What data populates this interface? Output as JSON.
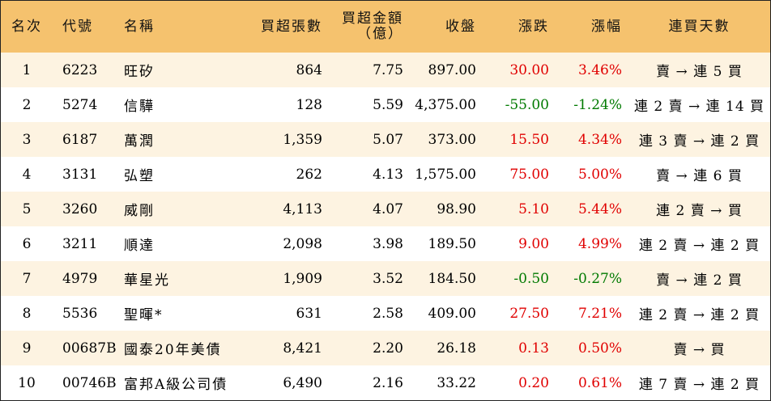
{
  "headers": {
    "rank": "名次",
    "code": "代號",
    "name": "名稱",
    "net_lots": "買超張數",
    "net_amount_line1": "買超金額",
    "net_amount_line2": "（億）",
    "close": "收盤",
    "change": "漲跌",
    "change_pct": "漲幅",
    "streak": "連買天數"
  },
  "colors": {
    "header_bg": "#f5c26e",
    "stripe_bg": "#fdf3e1",
    "up": "#e00000",
    "down": "#007a00"
  },
  "rows": [
    {
      "rank": "1",
      "code": "6223",
      "name": "旺矽",
      "net_lots": "864",
      "net_amount": "7.75",
      "close": "897.00",
      "change": "30.00",
      "change_pct": "3.46%",
      "direction": "up",
      "streak": "賣 → 連 5 買"
    },
    {
      "rank": "2",
      "code": "5274",
      "name": "信驊",
      "net_lots": "128",
      "net_amount": "5.59",
      "close": "4,375.00",
      "change": "-55.00",
      "change_pct": "-1.24%",
      "direction": "down",
      "streak": "連 2 賣 → 連 14 買"
    },
    {
      "rank": "3",
      "code": "6187",
      "name": "萬潤",
      "net_lots": "1,359",
      "net_amount": "5.07",
      "close": "373.00",
      "change": "15.50",
      "change_pct": "4.34%",
      "direction": "up",
      "streak": "連 3 賣 → 連 2 買"
    },
    {
      "rank": "4",
      "code": "3131",
      "name": "弘塑",
      "net_lots": "262",
      "net_amount": "4.13",
      "close": "1,575.00",
      "change": "75.00",
      "change_pct": "5.00%",
      "direction": "up",
      "streak": "賣 → 連 6 買"
    },
    {
      "rank": "5",
      "code": "3260",
      "name": "威剛",
      "net_lots": "4,113",
      "net_amount": "4.07",
      "close": "98.90",
      "change": "5.10",
      "change_pct": "5.44%",
      "direction": "up",
      "streak": "連 2 賣 → 買"
    },
    {
      "rank": "6",
      "code": "3211",
      "name": "順達",
      "net_lots": "2,098",
      "net_amount": "3.98",
      "close": "189.50",
      "change": "9.00",
      "change_pct": "4.99%",
      "direction": "up",
      "streak": "連 2 賣 → 連 2 買"
    },
    {
      "rank": "7",
      "code": "4979",
      "name": "華星光",
      "net_lots": "1,909",
      "net_amount": "3.52",
      "close": "184.50",
      "change": "-0.50",
      "change_pct": "-0.27%",
      "direction": "down",
      "streak": "賣 → 連 2 買"
    },
    {
      "rank": "8",
      "code": "5536",
      "name": "聖暉*",
      "net_lots": "631",
      "net_amount": "2.58",
      "close": "409.00",
      "change": "27.50",
      "change_pct": "7.21%",
      "direction": "up",
      "streak": "連 2 賣 → 連 2 買"
    },
    {
      "rank": "9",
      "code": "00687B",
      "name": "國泰20年美債",
      "net_lots": "8,421",
      "net_amount": "2.20",
      "close": "26.18",
      "change": "0.13",
      "change_pct": "0.50%",
      "direction": "up",
      "streak": "賣 → 買"
    },
    {
      "rank": "10",
      "code": "00746B",
      "name": "富邦A級公司債",
      "net_lots": "6,490",
      "net_amount": "2.16",
      "close": "33.22",
      "change": "0.20",
      "change_pct": "0.61%",
      "direction": "up",
      "streak": "連 7 賣 → 連 2 買"
    }
  ]
}
